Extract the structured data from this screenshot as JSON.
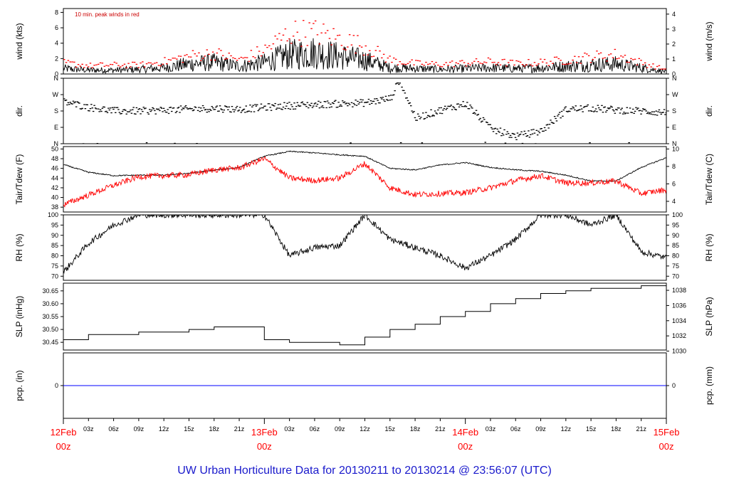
{
  "chart_data": {
    "type": "line",
    "title": "UW Urban Horticulture Data for 20130211  to  20130214 @ 23:56:07  (UTC)",
    "x_axis": {
      "start": "2013-02-12 00z",
      "end": "2013-02-15 00z",
      "tick_labels": [
        "03z",
        "06z",
        "09z",
        "12z",
        "15z",
        "18z",
        "21z"
      ],
      "day_labels": [
        {
          "day": "12Feb",
          "hour": "00z"
        },
        {
          "day": "13Feb",
          "hour": "00z"
        },
        {
          "day": "14Feb",
          "hour": "00z"
        },
        {
          "day": "15Feb",
          "hour": "00z"
        }
      ]
    },
    "panels": [
      {
        "id": "wind",
        "ylabel_left": "wind (kts)",
        "ylabel_right": "wind (m/s)",
        "ylim": [
          0,
          8.5
        ],
        "left_ticks": [
          "0",
          "2",
          "4",
          "6",
          "8"
        ],
        "right_ticks": [
          "0",
          "1",
          "2",
          "3",
          "4"
        ],
        "annotation": "10 min. peak winds in red",
        "series": [
          {
            "type": "line",
            "color": "#000000",
            "x": [
              0,
              3,
              6,
              9,
              12,
              15,
              18,
              21,
              24,
              27,
              30,
              33,
              36,
              39,
              42,
              45,
              48,
              51,
              54,
              57,
              60,
              63,
              66,
              69,
              72
            ],
            "y": [
              0.7,
              0.5,
              0.5,
              0.6,
              0.8,
              1.3,
              1.5,
              1.0,
              1.5,
              2.5,
              2.8,
              2.3,
              1.8,
              0.8,
              0.7,
              0.6,
              0.7,
              0.8,
              0.7,
              0.8,
              1.0,
              1.2,
              1.3,
              0.8,
              0.3
            ]
          },
          {
            "type": "points",
            "color": "#ff0000",
            "x": [
              0,
              3,
              6,
              9,
              12,
              15,
              18,
              21,
              24,
              27,
              30,
              33,
              36,
              39,
              42,
              45,
              48,
              51,
              54,
              57,
              60,
              63,
              66,
              69,
              72
            ],
            "y": [
              1.6,
              1.2,
              1.3,
              1.3,
              1.8,
              2.6,
              3.0,
              2.0,
              3.5,
              6.0,
              6.0,
              5.0,
              4.0,
              2.0,
              1.5,
              1.4,
              1.6,
              1.8,
              1.5,
              1.7,
              2.0,
              2.5,
              2.8,
              1.6,
              0.6
            ]
          }
        ]
      },
      {
        "id": "dir",
        "ylabel_left": "dir.",
        "ylabel_right": "dir.",
        "ylim": [
          0,
          360
        ],
        "left_ticks": [
          "N",
          "E",
          "S",
          "W",
          "N"
        ],
        "right_ticks": [
          "N",
          "E",
          "S",
          "W",
          "N"
        ],
        "series": [
          {
            "type": "points",
            "color": "#000000",
            "x": [
              0,
              3,
              6,
              9,
              12,
              15,
              18,
              21,
              24,
              27,
              30,
              33,
              36,
              39,
              40,
              42,
              45,
              48,
              51,
              54,
              57,
              60,
              63,
              66,
              69,
              72
            ],
            "y": [
              230,
              200,
              180,
              180,
              185,
              190,
              195,
              190,
              200,
              210,
              215,
              220,
              225,
              250,
              350,
              140,
              185,
              220,
              80,
              40,
              70,
              190,
              195,
              185,
              180,
              170
            ]
          }
        ]
      },
      {
        "id": "temp",
        "ylabel_left": "Tair/Tdew (F)",
        "ylabel_right": "Tair/Tdew (C)",
        "ylim": [
          37,
          50.5
        ],
        "left_ticks": [
          "38",
          "40",
          "42",
          "44",
          "46",
          "48",
          "50"
        ],
        "right_ticks": [
          "4",
          "6",
          "8",
          "10"
        ],
        "series": [
          {
            "name": "Tair",
            "type": "line",
            "color": "#000000",
            "x": [
              0,
              3,
              6,
              9,
              12,
              15,
              18,
              21,
              24,
              27,
              30,
              33,
              36,
              39,
              42,
              45,
              48,
              51,
              54,
              57,
              60,
              63,
              66,
              69,
              72
            ],
            "y": [
              46.8,
              45.2,
              44.5,
              44.6,
              44.6,
              45.0,
              45.6,
              46.2,
              48.5,
              49.5,
              49.2,
              48.8,
              48.5,
              46.0,
              45.7,
              46.7,
              47.2,
              46.2,
              45.7,
              45.4,
              44.6,
              43.4,
              43.4,
              46.2,
              48.2
            ]
          },
          {
            "name": "Tdew",
            "type": "line",
            "color": "#ff0000",
            "x": [
              0,
              3,
              6,
              9,
              12,
              15,
              18,
              21,
              24,
              27,
              30,
              33,
              36,
              39,
              42,
              45,
              48,
              51,
              54,
              57,
              60,
              63,
              66,
              69,
              72
            ],
            "y": [
              38.5,
              40.5,
              42.5,
              44.3,
              44.5,
              44.7,
              45.7,
              46.1,
              48.0,
              44.0,
              43.5,
              44.0,
              47.0,
              42.0,
              40.6,
              40.8,
              41.0,
              42.0,
              43.5,
              44.5,
              43.0,
              43.0,
              43.4,
              40.8,
              41.6
            ]
          }
        ]
      },
      {
        "id": "rh",
        "ylabel_left": "RH (%)",
        "ylabel_right": "RH (%)",
        "ylim": [
          68,
          100
        ],
        "left_ticks": [
          "70",
          "75",
          "80",
          "85",
          "90",
          "95",
          "100"
        ],
        "right_ticks": [
          "70",
          "75",
          "80",
          "85",
          "90",
          "95",
          "100"
        ],
        "series": [
          {
            "type": "line",
            "color": "#000000",
            "x": [
              0,
              3,
              6,
              9,
              12,
              15,
              18,
              21,
              24,
              27,
              30,
              33,
              36,
              39,
              42,
              45,
              48,
              51,
              54,
              57,
              60,
              63,
              66,
              69,
              72
            ],
            "y": [
              72,
              86,
              95,
              100,
              100,
              100,
              100,
              100,
              100,
              80,
              84,
              85,
              100,
              88,
              84,
              80,
              74,
              80,
              88,
              100,
              100,
              95,
              100,
              82,
              79
            ]
          }
        ]
      },
      {
        "id": "slp",
        "ylabel_left": "SLP (inHg)",
        "ylabel_right": "SLP (hPa)",
        "ylim": [
          30.42,
          30.68
        ],
        "left_ticks": [
          "30.45",
          "30.50",
          "30.55",
          "30.60",
          "30.65"
        ],
        "right_ticks": [
          "1030",
          "1032",
          "1034",
          "1036",
          "1038"
        ],
        "series": [
          {
            "type": "step",
            "color": "#000000",
            "x": [
              0,
              3,
              6,
              9,
              12,
              15,
              18,
              21,
              24,
              27,
              30,
              33,
              36,
              39,
              42,
              45,
              48,
              51,
              54,
              57,
              60,
              63,
              66,
              69,
              72
            ],
            "y": [
              30.46,
              30.48,
              30.48,
              30.49,
              30.49,
              30.5,
              30.51,
              30.51,
              30.46,
              30.45,
              30.45,
              30.44,
              30.47,
              30.5,
              30.52,
              30.55,
              30.57,
              30.6,
              30.62,
              30.64,
              30.65,
              30.66,
              30.66,
              30.67,
              30.67
            ]
          }
        ]
      },
      {
        "id": "pcp",
        "ylabel_left": "pcp. (in)",
        "ylabel_right": "pcp. (mm)",
        "ylim": [
          -1,
          1
        ],
        "left_ticks": [
          "0"
        ],
        "right_ticks": [
          "0"
        ],
        "series": [
          {
            "type": "line",
            "color": "#0000ff",
            "x": [
              0,
              72
            ],
            "y": [
              0,
              0
            ]
          }
        ]
      }
    ]
  }
}
